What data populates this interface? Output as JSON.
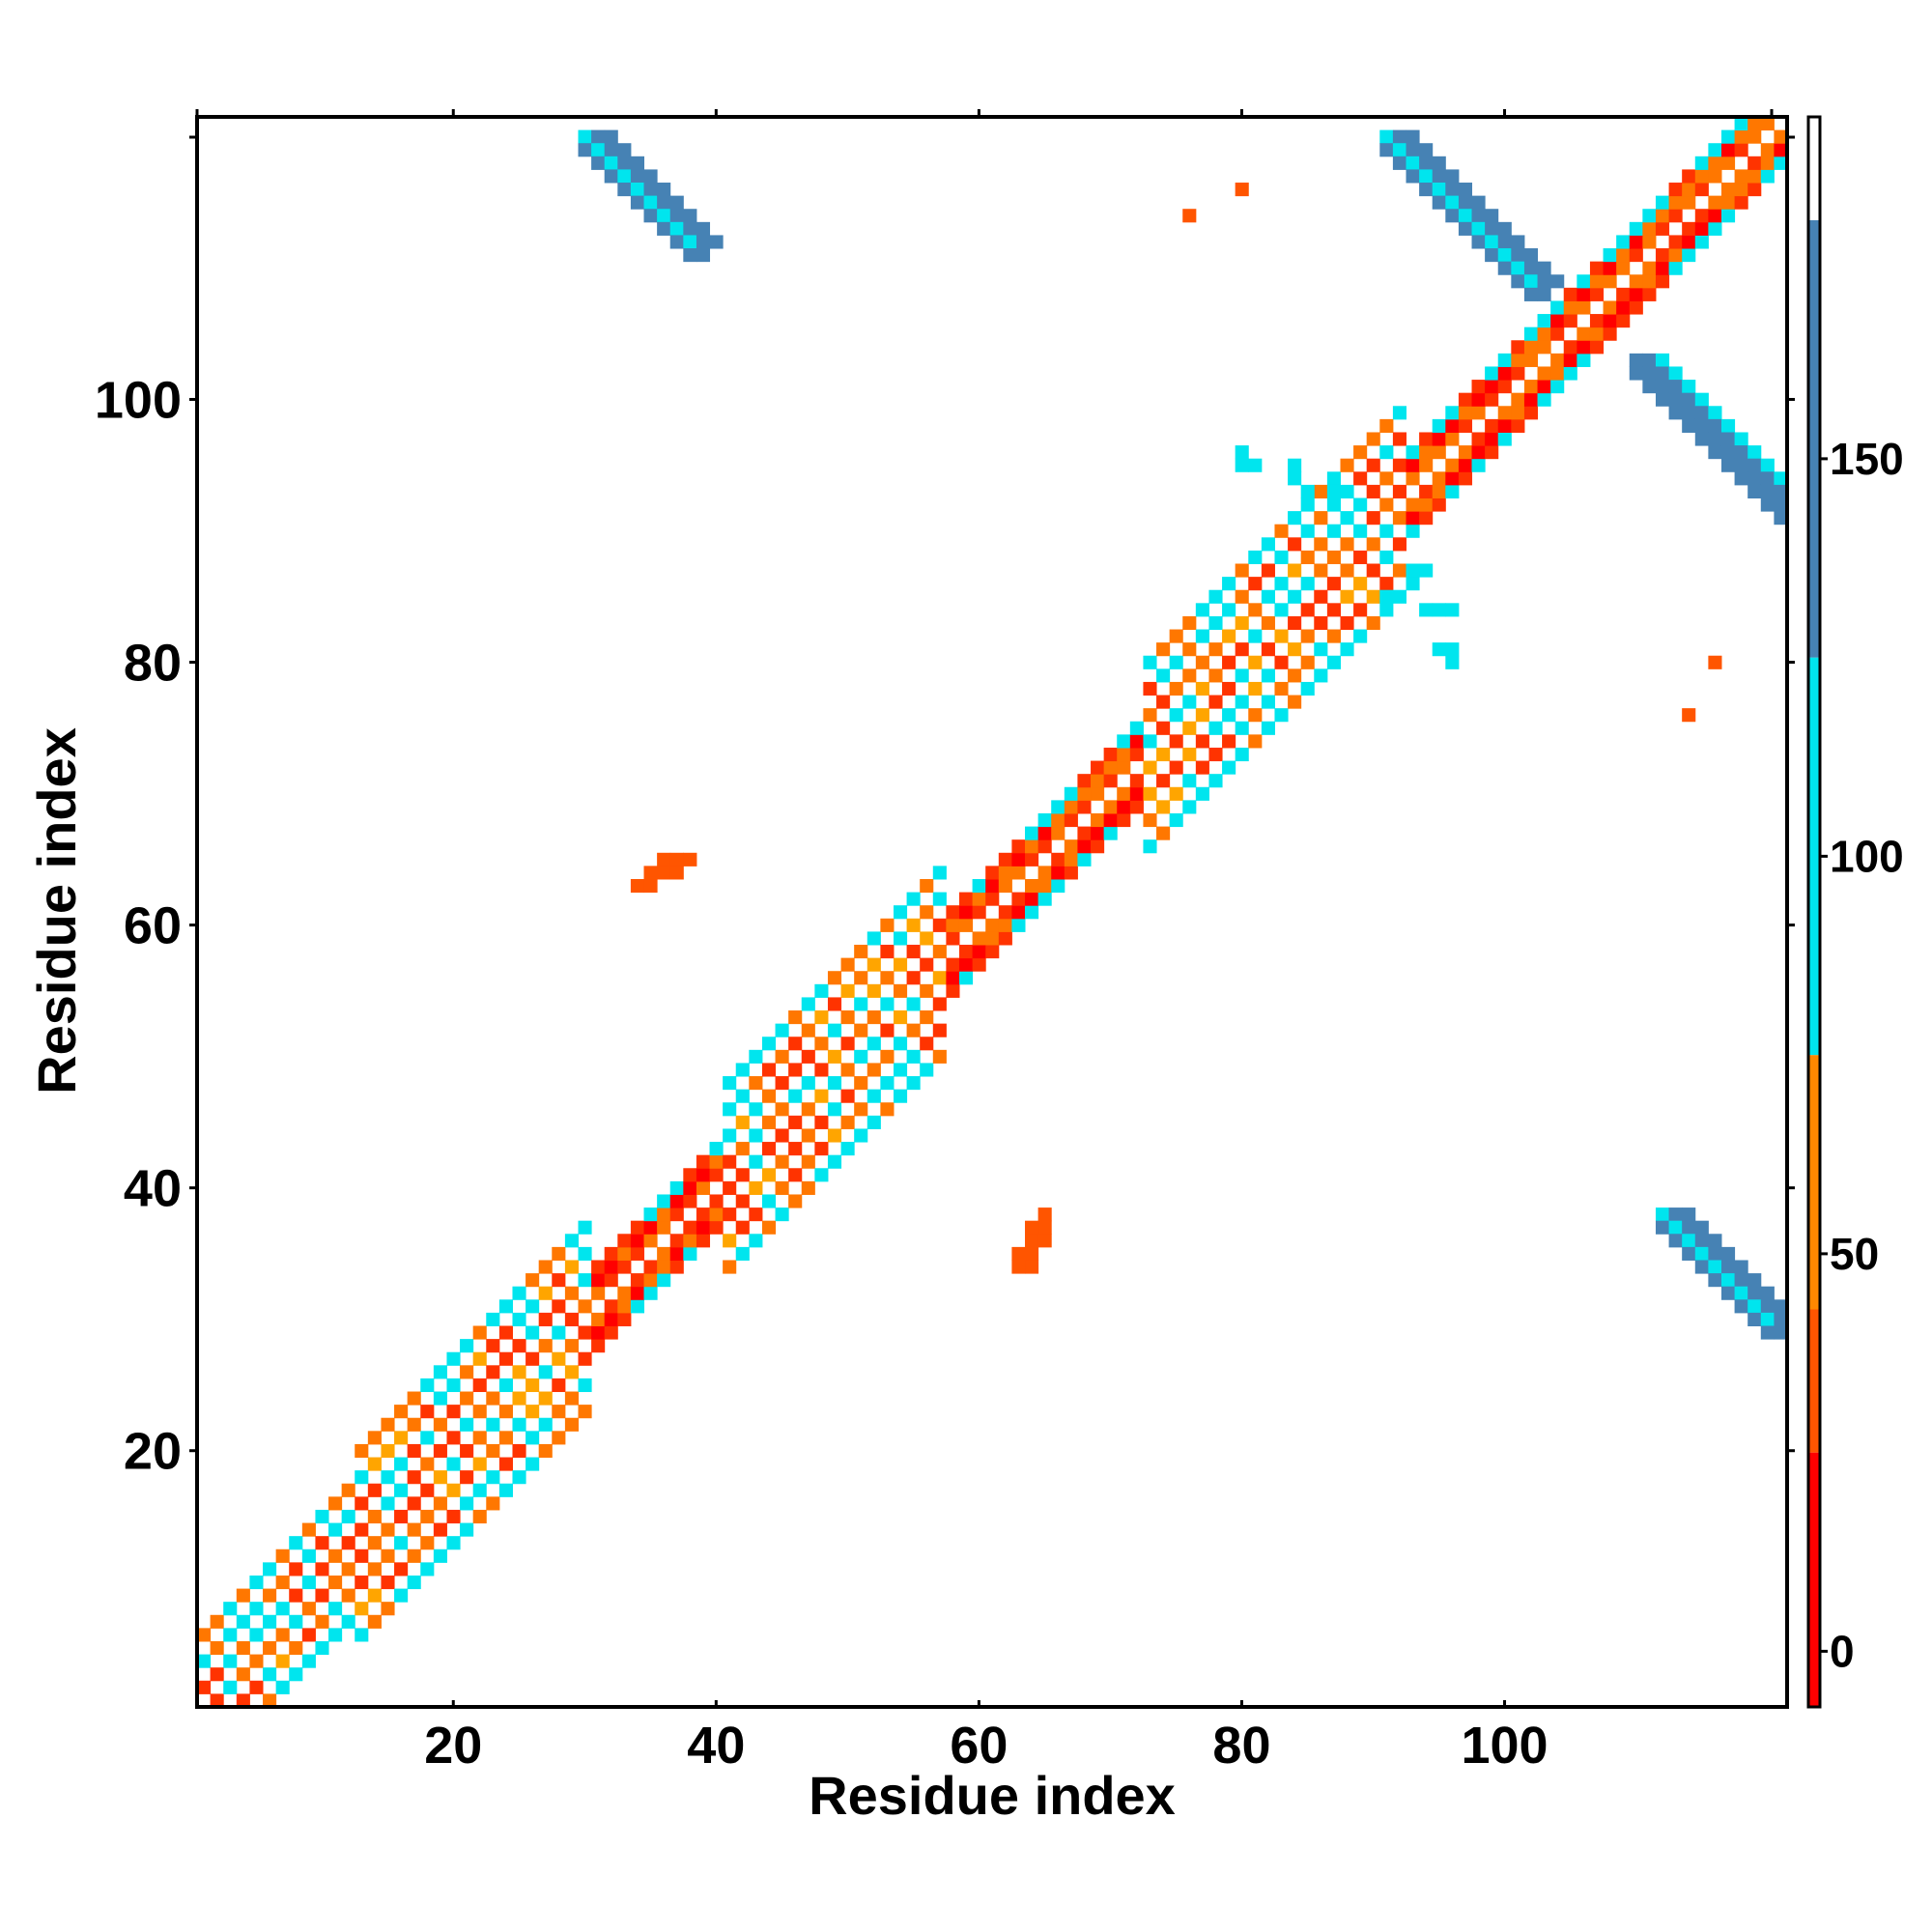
{
  "chart_data": {
    "type": "heatmap",
    "title": "",
    "xlabel": "Residue index",
    "ylabel": "Residue index",
    "xlim": [
      1,
      121
    ],
    "ylim": [
      1,
      121
    ],
    "xticks": [
      20,
      40,
      60,
      80,
      100
    ],
    "yticks": [
      20,
      40,
      60,
      80,
      100
    ],
    "colorbar": {
      "ticks": [
        0,
        50,
        100,
        150
      ],
      "range": [
        -7,
        193
      ],
      "bands": [
        {
          "from": -7,
          "to": 25,
          "color": "#ff0000"
        },
        {
          "from": 25,
          "to": 43,
          "color": "#ff5500"
        },
        {
          "from": 43,
          "to": 75,
          "color": "#ff8800"
        },
        {
          "from": 75,
          "to": 125,
          "color": "#00e5ee"
        },
        {
          "from": 125,
          "to": 180,
          "color": "#4682b4"
        },
        {
          "from": 180,
          "to": 193,
          "color": "#ffffff"
        }
      ]
    },
    "colors": {
      "red": "#ff0000",
      "red_orange": "#ff3300",
      "orange": "#ff7700",
      "light_orange": "#ffa500",
      "cyan": "#00e5ee",
      "light_blue": "#33b5e5",
      "steel_blue": "#4682b4"
    },
    "diagonal": {
      "segments": [
        {
          "from": 1,
          "to": 12,
          "width": 6
        },
        {
          "from": 12,
          "to": 30,
          "width": 8
        },
        {
          "from": 30,
          "to": 40,
          "width": 3
        },
        {
          "from": 40,
          "to": 57,
          "width": 7
        },
        {
          "from": 57,
          "to": 72,
          "width": 3
        },
        {
          "from": 72,
          "to": 92,
          "width": 8
        },
        {
          "from": 92,
          "to": 121,
          "width": 3
        }
      ]
    },
    "contact_clusters": [
      {
        "name": "sheet-30-118",
        "type": "antiparallel",
        "x_start": 30,
        "y_start": 120,
        "length": 9,
        "width": 3,
        "values": [
          120,
          150,
          150
        ]
      },
      {
        "name": "sheet-118-30",
        "type": "antiparallel",
        "x_start": 112,
        "y_start": 38,
        "length": 9,
        "width": 3,
        "values": [
          120,
          150,
          150
        ]
      },
      {
        "name": "sheet-91-118",
        "type": "antiparallel",
        "x_start": 91,
        "y_start": 120,
        "length": 12,
        "width": 3,
        "values": [
          100,
          150,
          130
        ]
      },
      {
        "name": "sheet-110-102",
        "type": "antiparallel",
        "x_start": 110,
        "y_start": 103,
        "length": 12,
        "width": 3,
        "values": [
          130,
          150,
          120
        ]
      },
      {
        "name": "patch-64-36",
        "type": "patch",
        "points": [
          [
            63,
            34
          ],
          [
            64,
            35
          ],
          [
            64,
            36
          ],
          [
            65,
            36
          ],
          [
            65,
            37
          ],
          [
            65,
            38
          ],
          [
            64,
            37
          ],
          [
            63,
            35
          ],
          [
            64,
            34
          ]
        ],
        "values": [
          30
        ]
      },
      {
        "name": "patch-36-64",
        "type": "patch",
        "points": [
          [
            34,
            63
          ],
          [
            35,
            63
          ],
          [
            35,
            64
          ],
          [
            36,
            64
          ],
          [
            36,
            65
          ],
          [
            37,
            65
          ],
          [
            38,
            65
          ],
          [
            37,
            64
          ]
        ],
        "values": [
          30
        ]
      },
      {
        "name": "isolated",
        "type": "patch",
        "points": [
          [
            76,
            114
          ],
          [
            80,
            116
          ],
          [
            114,
            76
          ],
          [
            116,
            80
          ]
        ],
        "values": [
          25
        ]
      },
      {
        "name": "cyan-fan",
        "type": "patch",
        "points": [
          [
            80,
            96
          ],
          [
            81,
            95
          ],
          [
            80,
            95
          ],
          [
            84,
            94
          ],
          [
            84,
            95
          ],
          [
            85,
            93
          ],
          [
            85,
            92
          ],
          [
            87,
            93
          ],
          [
            88,
            93
          ],
          [
            87,
            92
          ],
          [
            88,
            91
          ],
          [
            89,
            92
          ],
          [
            94,
            84
          ],
          [
            95,
            84
          ],
          [
            96,
            84
          ],
          [
            95,
            81
          ],
          [
            96,
            81
          ],
          [
            96,
            80
          ],
          [
            93,
            86
          ],
          [
            93,
            87
          ],
          [
            94,
            87
          ],
          [
            92,
            85
          ],
          [
            91,
            85
          ]
        ],
        "values": [
          100
        ]
      }
    ]
  }
}
